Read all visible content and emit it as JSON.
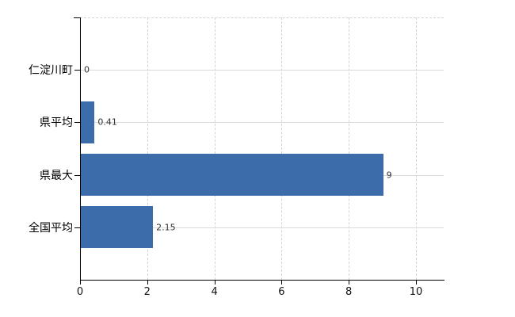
{
  "chart_data": {
    "type": "bar",
    "orientation": "horizontal",
    "title": "",
    "xlabel": "",
    "ylabel": "",
    "categories": [
      "仁淀川町",
      "県平均",
      "県最大",
      "全国平均"
    ],
    "values": [
      0,
      0.41,
      9,
      2.15
    ],
    "value_labels": [
      "0",
      "0.41",
      "9",
      "2.15"
    ],
    "x_ticks": [
      "0",
      "2",
      "4",
      "6",
      "8",
      "10"
    ],
    "x_tick_values": [
      0,
      2,
      4,
      6,
      8,
      10
    ],
    "xlim": [
      0,
      10.85
    ],
    "grid": true,
    "legend": false,
    "colors": {
      "bar": "#3d6cab",
      "axis": "#000000",
      "h_gridline": "#d5ddd5",
      "v_gridline": "#d6d2d2",
      "top_border": "#d4d4d4",
      "category_label": "#000000",
      "value_label": "#333333",
      "tick_label": "#111111",
      "background": "#ffffff"
    }
  }
}
